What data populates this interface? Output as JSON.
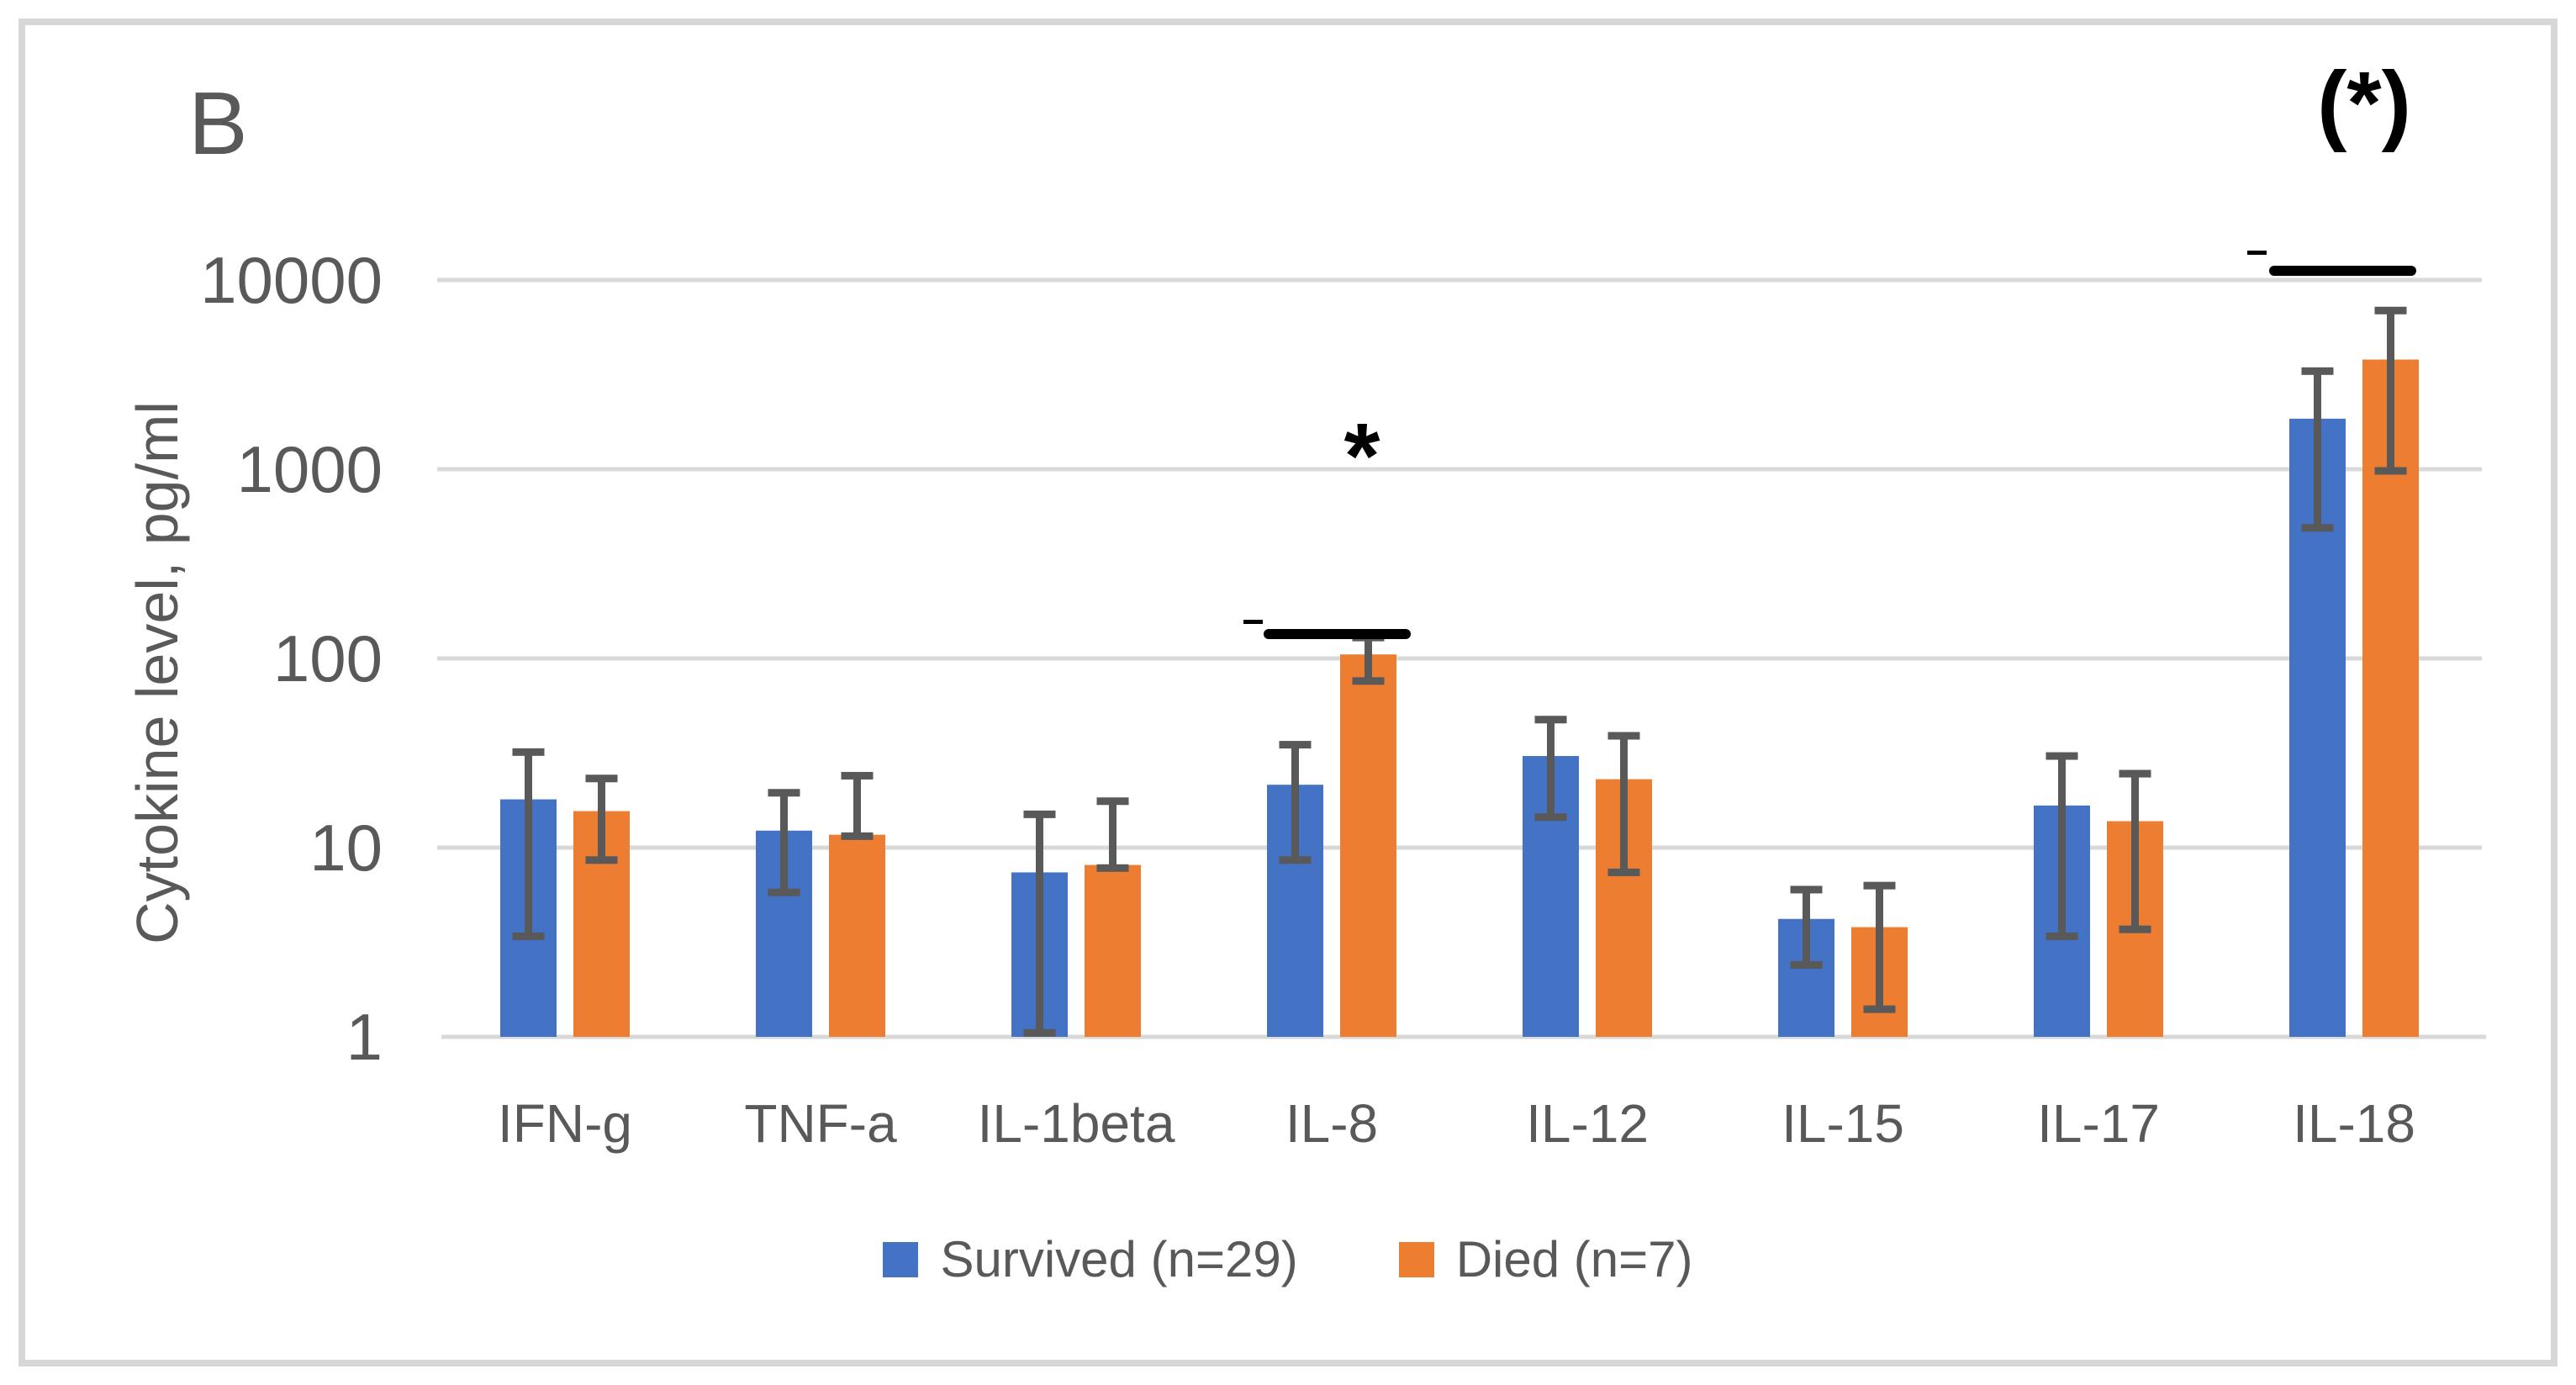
{
  "panel_label": "B",
  "chart_data": {
    "type": "bar",
    "y_scale": "log",
    "title": "",
    "xlabel": "",
    "ylabel": "Cytokine level, pg/ml",
    "ylim": [
      1,
      10000
    ],
    "grid": true,
    "legend_position": "bottom",
    "yticks": [
      "10000",
      "1000",
      "100",
      "10",
      "1"
    ],
    "ytick_values": [
      10000,
      1000,
      100,
      10,
      1
    ],
    "categories": [
      "IFN-g",
      "TNF-a",
      "IL-1beta",
      "IL-8",
      "IL-12",
      "IL-15",
      "IL-17",
      "IL-18"
    ],
    "series": [
      {
        "name": "Survived (n=29)",
        "color": "#4472C4",
        "values": [
          18,
          12.3,
          7.4,
          21.5,
          30.5,
          4.2,
          16.7,
          1850
        ],
        "err_high": [
          32,
          19.5,
          15,
          35,
          47.5,
          6,
          30.5,
          3300
        ],
        "err_low": [
          3.4,
          5.8,
          1.05,
          8.6,
          14.5,
          2.4,
          3.4,
          490
        ]
      },
      {
        "name": "Died (n=7)",
        "color": "#ED7D31",
        "values": [
          15.6,
          11.7,
          8.1,
          105,
          23,
          3.8,
          13.8,
          3800
        ],
        "err_high": [
          23.2,
          24,
          17.6,
          129,
          39,
          6.3,
          24.6,
          6900
        ],
        "err_low": [
          8.6,
          11.5,
          7.8,
          76,
          7.4,
          1.4,
          3.7,
          980
        ]
      }
    ],
    "annotations": [
      {
        "text": "*",
        "category": "IL-8",
        "meaning": "significant difference"
      },
      {
        "text": "(*)",
        "category": "IL-18",
        "meaning": "borderline significant difference"
      }
    ]
  },
  "colors": {
    "bar_blue": "#4472C4",
    "bar_orange": "#ED7D31",
    "error_bar": "#595959",
    "gridline": "#D9D9D9",
    "axis_line": "#D9D9D9",
    "text": "#595959",
    "significance": "#000000",
    "frame_border": "#D7D7D7"
  }
}
